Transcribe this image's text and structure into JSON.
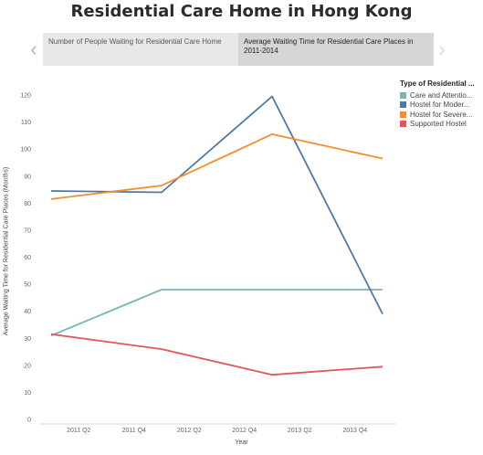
{
  "page_title": "Residential Care Home in Hong Kong",
  "nav": {
    "prev_icon": "chevron-left-icon",
    "next_icon": "chevron-right-icon"
  },
  "tabs": [
    {
      "label": "Number of People Waiting for Residential Care Home",
      "selected": false
    },
    {
      "label": "Average Waiting Time for Residential Care Places in 2011-2014",
      "selected": true
    }
  ],
  "legend": {
    "title": "Type of Residential ...",
    "items": [
      {
        "label": "Care and Attentio...",
        "color": "#76b7b2"
      },
      {
        "label": "Hostel for Moder...",
        "color": "#4e79a7"
      },
      {
        "label": "Hostel for Severe...",
        "color": "#f28e2b"
      },
      {
        "label": "Supported Hostel",
        "color": "#e15759"
      }
    ]
  },
  "chart_data": {
    "type": "line",
    "xlabel": "Year",
    "ylabel": "Average Waiting Time for Residential Care Places (Months)",
    "x_ticks": [
      "2011 Q2",
      "2011 Q4",
      "2012 Q2",
      "2012 Q4",
      "2013 Q2",
      "2013 Q4"
    ],
    "x_points": [
      "2011 Q1",
      "2012 Q1",
      "2013 Q1",
      "2014 Q1"
    ],
    "ylim": [
      0,
      120
    ],
    "y_ticks": [
      0,
      10,
      20,
      30,
      40,
      50,
      60,
      70,
      80,
      90,
      100,
      110,
      120
    ],
    "grid": false,
    "legend_position": "top-right",
    "series": [
      {
        "name": "Care and Attentio...",
        "color": "#76b7b2",
        "values": [
          31,
          48,
          48,
          48
        ]
      },
      {
        "name": "Hostel for Moder...",
        "color": "#4e79a7",
        "values": [
          84.5,
          84,
          119.5,
          39
        ]
      },
      {
        "name": "Hostel for Severe...",
        "color": "#f28e2b",
        "values": [
          81.5,
          86.5,
          105.5,
          96.5
        ]
      },
      {
        "name": "Supported Hostel",
        "color": "#e15759",
        "values": [
          31.5,
          26,
          16.5,
          19.5
        ]
      }
    ]
  }
}
